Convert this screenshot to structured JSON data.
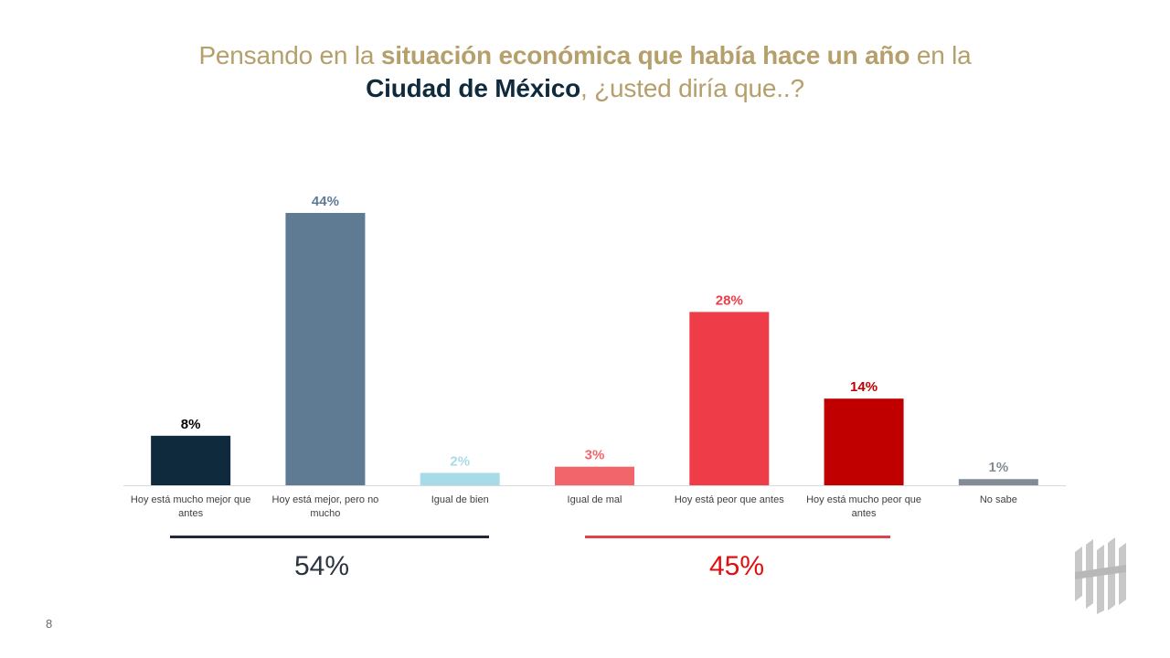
{
  "title": {
    "line1_a": "Pensando en la ",
    "line1_b": "situación económica",
    "line1_c": "  ",
    "line1_d": "que había hace un año",
    "line1_e": " en la",
    "line2_a": "Ciudad de México",
    "line2_b": ", ¿usted diría que..?"
  },
  "chart_data": {
    "type": "bar",
    "categories": [
      "Hoy está mucho mejor que antes",
      "Hoy está mejor, pero no mucho",
      "Igual de bien",
      "Igual de mal",
      "Hoy está peor que antes",
      "Hoy está mucho peor que antes",
      "No sabe"
    ],
    "category_lines": [
      [
        "Hoy está mucho mejor que",
        "antes"
      ],
      [
        "Hoy está mejor, pero no",
        "mucho"
      ],
      [
        "Igual de bien"
      ],
      [
        "Igual de mal"
      ],
      [
        "Hoy está peor que antes"
      ],
      [
        "Hoy está mucho peor que",
        "antes"
      ],
      [
        "No sabe"
      ]
    ],
    "values": [
      8,
      44,
      2,
      3,
      28,
      14,
      1
    ],
    "value_labels": [
      "8%",
      "44%",
      "2%",
      "3%",
      "28%",
      "14%",
      "1%"
    ],
    "colors": [
      "#0e2a3c",
      "#5f7a93",
      "#a8dbe8",
      "#f2666b",
      "#ee3d48",
      "#c00000",
      "#838c96"
    ],
    "label_colors": [
      "#000000",
      "#5f7a93",
      "#a8dbe8",
      "#f2666b",
      "#ee3d48",
      "#c00000",
      "#838c96"
    ],
    "ylim": [
      0,
      44
    ],
    "grid": false,
    "legend": "none"
  },
  "groups": [
    {
      "total": "54%",
      "line_color": "#1f2a36",
      "text_color": "#2b3440"
    },
    {
      "total": "45%",
      "line_color": "#e0414a",
      "text_color": "#e01010"
    }
  ],
  "page_number": "8"
}
